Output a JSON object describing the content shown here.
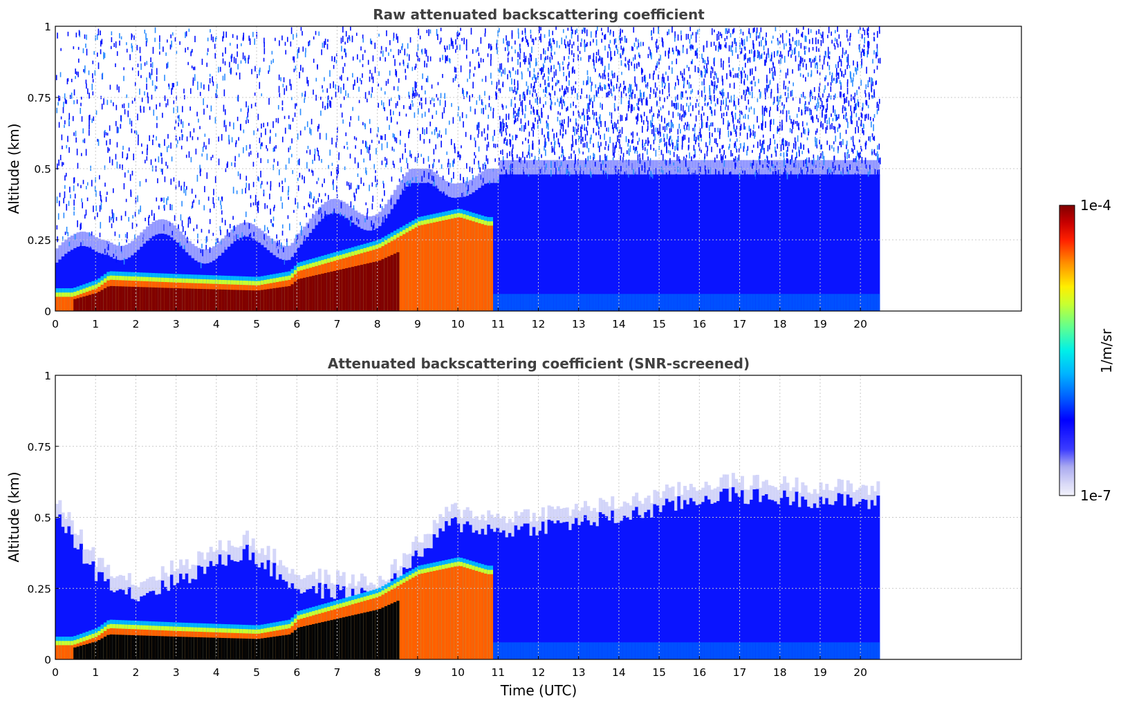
{
  "colorbar": {
    "max_label": "1e-4",
    "min_label": "1e-7",
    "unit_label": "1/m/sr",
    "vmin": 1e-07,
    "vmax": 0.0001,
    "scale": "log",
    "colormap": "jet-like (white-lavender → blue → cyan → green → yellow → red → dark red)"
  },
  "chart_data": [
    {
      "type": "heatmap",
      "title": "Raw attenuated backscattering coefficient",
      "xlabel": "",
      "ylabel": "Altitude (km)",
      "xlim": [
        0,
        24
      ],
      "ylim": [
        0,
        1
      ],
      "x_ticks": [
        "0",
        "1",
        "2",
        "3",
        "4",
        "5",
        "6",
        "7",
        "8",
        "9",
        "10",
        "11",
        "12",
        "13",
        "14",
        "15",
        "16",
        "17",
        "18",
        "19",
        "20"
      ],
      "y_ticks": [
        "0",
        "0.25",
        "0.5",
        "0.75",
        "1"
      ],
      "grid": true,
      "data_extent_x": [
        0,
        20.45
      ],
      "features": {
        "aerosol_layer_top_km": [
          {
            "t": 0.4,
            "z": 0.05
          },
          {
            "t": 1.0,
            "z": 0.08
          },
          {
            "t": 1.3,
            "z": 0.11
          },
          {
            "t": 3.0,
            "z": 0.1
          },
          {
            "t": 5.0,
            "z": 0.09
          },
          {
            "t": 5.8,
            "z": 0.11
          },
          {
            "t": 6.0,
            "z": 0.14
          },
          {
            "t": 7.0,
            "z": 0.18
          },
          {
            "t": 8.0,
            "z": 0.22
          },
          {
            "t": 9.0,
            "z": 0.3
          },
          {
            "t": 10.0,
            "z": 0.33
          },
          {
            "t": 10.7,
            "z": 0.3
          }
        ],
        "saturated_region": "dark red below aerosol layer top, 0.4–8.5 UTC",
        "noise_region": "scattered blue noise above 0.25 km, dense after 11 UTC"
      }
    },
    {
      "type": "heatmap",
      "title": "Attenuated backscattering coefficient (SNR-screened)",
      "xlabel": "Time (UTC)",
      "ylabel": "Altitude (km)",
      "xlim": [
        0,
        24
      ],
      "ylim": [
        0,
        1
      ],
      "x_ticks": [
        "0",
        "1",
        "2",
        "3",
        "4",
        "5",
        "6",
        "7",
        "8",
        "9",
        "10",
        "11",
        "12",
        "13",
        "14",
        "15",
        "16",
        "17",
        "18",
        "19",
        "20"
      ],
      "y_ticks": [
        "0",
        "0.25",
        "0.5",
        "0.75",
        "1"
      ],
      "grid": true,
      "data_extent_x": [
        0,
        20.45
      ],
      "features": {
        "screened_top_km": [
          {
            "t": 0.0,
            "z": 0.5
          },
          {
            "t": 1.0,
            "z": 0.3
          },
          {
            "t": 2.0,
            "z": 0.22
          },
          {
            "t": 4.7,
            "z": 0.38
          },
          {
            "t": 6.0,
            "z": 0.25
          },
          {
            "t": 8.0,
            "z": 0.22
          },
          {
            "t": 9.8,
            "z": 0.48
          },
          {
            "t": 11.0,
            "z": 0.45
          },
          {
            "t": 14.0,
            "z": 0.5
          },
          {
            "t": 16.5,
            "z": 0.58
          },
          {
            "t": 20.4,
            "z": 0.55
          }
        ],
        "saturated_region": "black below aerosol layer top, 0.4–8.5 UTC"
      }
    }
  ]
}
